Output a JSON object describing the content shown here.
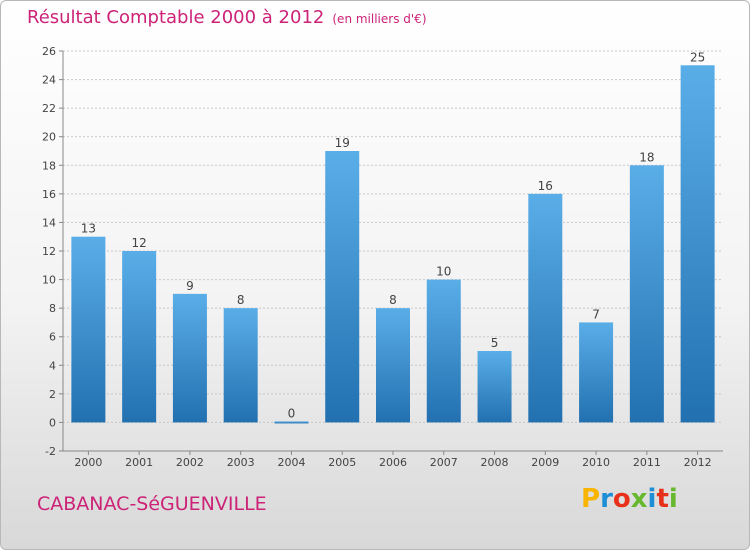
{
  "title": "Résultat Comptable 2000 à 2012",
  "subtitle": "(en milliers d'€)",
  "place_name": "CABANAC-SéGUENVILLE",
  "logo": {
    "letters": [
      "P",
      "r",
      "o",
      "x",
      "i",
      "t",
      "i"
    ],
    "colors": [
      "#f7b500",
      "#1e8fd6",
      "#e8311a",
      "#66b82e",
      "#1e8fd6",
      "#e8311a",
      "#66b82e"
    ]
  },
  "colors": {
    "accent": "#cc2277",
    "bar_light": "#5aaee8",
    "bar_dark": "#2270b0"
  },
  "chart_data": {
    "type": "bar",
    "title": "Résultat Comptable 2000 à 2012",
    "subtitle": "(en milliers d'€)",
    "xlabel": "",
    "ylabel": "",
    "categories": [
      "2000",
      "2001",
      "2002",
      "2003",
      "2004",
      "2005",
      "2006",
      "2007",
      "2008",
      "2009",
      "2010",
      "2011",
      "2012"
    ],
    "values": [
      13,
      12,
      9,
      8,
      0,
      19,
      8,
      10,
      5,
      16,
      7,
      18,
      25
    ],
    "ylim": [
      -2,
      26
    ],
    "yticks": [
      -2,
      0,
      2,
      4,
      6,
      8,
      10,
      12,
      14,
      16,
      18,
      20,
      22,
      24,
      26
    ],
    "grid": true,
    "legend": "none"
  }
}
